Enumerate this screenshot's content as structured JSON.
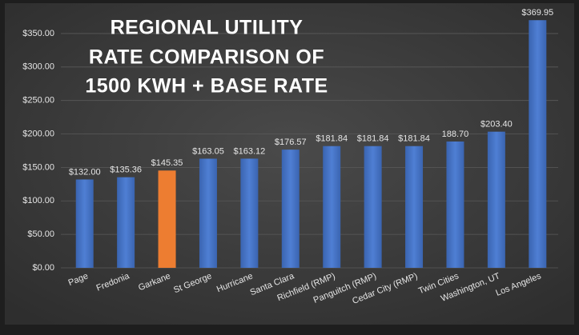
{
  "chart_data": {
    "type": "bar",
    "title": [
      "REGIONAL UTILITY",
      "RATE COMPARISON OF",
      "1500 KWH + BASE RATE"
    ],
    "categories": [
      "Page",
      "Fredonia",
      "Garkane",
      "St George",
      "Hurricane",
      "Santa Clara",
      "Richfield (RMP)",
      "Panguitch (RMP)",
      "Cedar City (RMP)",
      "Twin Cities",
      "Washington, UT",
      "Los Angeles"
    ],
    "values": [
      132.0,
      135.36,
      145.35,
      163.05,
      163.12,
      176.57,
      181.84,
      181.84,
      181.84,
      188.7,
      203.4,
      369.95
    ],
    "value_labels": [
      "$132.00",
      "$135.36",
      "$145.35",
      "$163.05",
      "$163.12",
      "$176.57",
      "$181.84",
      "$181.84",
      "$181.84",
      "188.70",
      "$203.40",
      "$369.95"
    ],
    "colors": [
      "#4472c4",
      "#4472c4",
      "#ed7d31",
      "#4472c4",
      "#4472c4",
      "#4472c4",
      "#4472c4",
      "#4472c4",
      "#4472c4",
      "#4472c4",
      "#4472c4",
      "#4472c4"
    ],
    "ylim": [
      0,
      375
    ],
    "yticks": [
      {
        "value": 0,
        "label": "$0.00"
      },
      {
        "value": 50,
        "label": "$50.00"
      },
      {
        "value": 100,
        "label": "$100.00"
      },
      {
        "value": 150,
        "label": "$150.00"
      },
      {
        "value": 200,
        "label": "$200.00"
      },
      {
        "value": 250,
        "label": "$250.00"
      },
      {
        "value": 300,
        "label": "$300.00"
      },
      {
        "value": 350,
        "label": "$350.00"
      }
    ],
    "grid": true
  }
}
